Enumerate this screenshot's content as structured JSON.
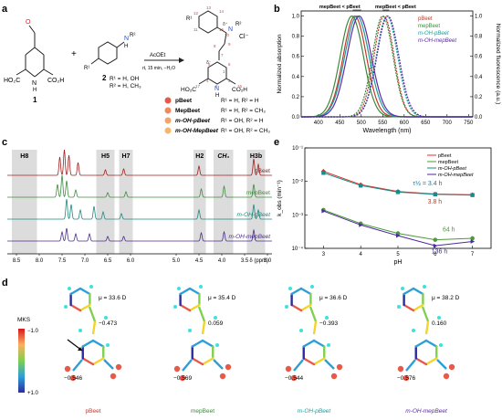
{
  "panel_a": {
    "label": "a",
    "reactant1": {
      "num": "1",
      "ho2c": "HO₂C",
      "co2h": "CO₂H",
      "nh": "N",
      "h": "H"
    },
    "reactant2": {
      "num": "2",
      "r1r2": "R¹ = H, OH",
      "r2": "R² = H, CH₃",
      "sub_nr": "N",
      "sub_r2": "R²",
      "sub_r1": "R¹",
      "sub_h": "H"
    },
    "plus": "+",
    "conditions_top": "AcOEt",
    "conditions_bottom": "rt, 15 min, −H₂O",
    "product": {
      "r1": "R¹",
      "r2": "R²",
      "cl": "Cl⁻",
      "ho2c": "HO₂C",
      "co2h": "CO₂H",
      "nh": "N",
      "h": "H",
      "atom_numbers": [
        "13",
        "14",
        "15",
        "12",
        "11",
        "10",
        "9",
        "8",
        "7",
        "5",
        "6",
        "4",
        "3",
        "2",
        "1",
        "17",
        "16"
      ],
      "delta_plus": "δ⁺",
      "delta_minus": "δ⁻"
    },
    "compounds": [
      {
        "name": "pBeet",
        "desc": "R¹ = H, R² = H",
        "color": "#e8574a"
      },
      {
        "name": "MepBeet",
        "desc": "R¹ = H, R² = CH₃",
        "color": "#f08a5d"
      },
      {
        "name": "m-OH-pBeet",
        "desc": "R¹ = OH, R² = H",
        "color": "#f4a46a"
      },
      {
        "name": "m-OH-MepBeet",
        "desc": "R¹ = OH, R² = CH₃",
        "color": "#f6b66e"
      }
    ]
  },
  "panel_b": {
    "label": "b",
    "annot_left": "mepBeet < pBeet",
    "annot_right": "mepBeet < pBeet",
    "chart_data": {
      "type": "line",
      "xlabel": "Wavelength (nm)",
      "ylabel_left": "Normalized absorption",
      "ylabel_right": "Normalized fluorescence (a.u.)",
      "xlim": [
        360,
        760
      ],
      "ylim": [
        0,
        1.05
      ],
      "xticks": [
        "400",
        "450",
        "500",
        "550",
        "600",
        "650",
        "700",
        "750"
      ],
      "yticks": [
        "0.0",
        "0.2",
        "0.4",
        "0.6",
        "0.8",
        "1.0"
      ],
      "legend": [
        "pBeet",
        "mepBeet",
        "m-OH-pBeet",
        "m-OH-mepBeet"
      ],
      "series": [
        {
          "name": "pBeet",
          "color": "#c0392b",
          "abs_peak": 485,
          "abs_width": 38,
          "fl_peak": 553,
          "fl_width": 33
        },
        {
          "name": "mepBeet",
          "color": "#3a8a3a",
          "abs_peak": 478,
          "abs_width": 38,
          "fl_peak": 550,
          "fl_width": 34
        },
        {
          "name": "m-OH-pBeet",
          "color": "#1a9e9a",
          "abs_peak": 490,
          "abs_width": 40,
          "fl_peak": 560,
          "fl_width": 35
        },
        {
          "name": "m-OH-mepBeet",
          "color": "#5b2aa8",
          "abs_peak": 495,
          "abs_width": 40,
          "fl_peak": 562,
          "fl_width": 36
        }
      ]
    }
  },
  "panel_c": {
    "label": "c",
    "band_labels": [
      "H8",
      "H5",
      "H7",
      "H2",
      "CH₃",
      "H3b"
    ],
    "xticks": [
      "8.5",
      "8.0",
      "7.5",
      "7.0",
      "6.5",
      "6.0",
      "5.0",
      "4.5",
      "4.0",
      "3.5",
      "3.0"
    ],
    "xlabel": "δ (ppm)",
    "spectra": [
      {
        "name": "pBeet",
        "color": "#a31f1f"
      },
      {
        "name": "mepBeet",
        "color": "#3f8c3f"
      },
      {
        "name": "m-OH-pBeet",
        "color": "#1f8a80"
      },
      {
        "name": "m-OH-mepBeet",
        "color": "#4b2d8f"
      }
    ]
  },
  "panel_d": {
    "label": "d",
    "colorbar": {
      "title": "MKS",
      "top": "−1.0",
      "bottom": "+1.0"
    },
    "molecules": [
      {
        "name": "pBeet",
        "color": "#c0392b",
        "dipole": "μ = 33.6 D",
        "q1": "−0.473",
        "q2": "−0.546"
      },
      {
        "name": "mepBeet",
        "color": "#3a8a3a",
        "dipole": "μ = 35.4 D",
        "q1": "0.059",
        "q2": "−0.569"
      },
      {
        "name": "m-OH-pBeet",
        "color": "#1a9e9a",
        "dipole": "μ = 36.6 D",
        "q1": "−0.393",
        "q2": "−0.544"
      },
      {
        "name": "m-OH-mepBeet",
        "color": "#5b2aa8",
        "dipole": "μ = 38.2 D",
        "q1": "0.160",
        "q2": "−0.576"
      }
    ]
  },
  "panel_e": {
    "label": "e",
    "chart_data": {
      "type": "scatter",
      "xlabel": "pH",
      "ylabel": "k_obs (min⁻¹)",
      "xlim": [
        2.5,
        7.5
      ],
      "ylim_log": [
        -4,
        -1
      ],
      "xticks": [
        "3",
        "4",
        "5",
        "6",
        "7"
      ],
      "yticks": [
        "10⁻⁴",
        "10⁻³",
        "10⁻²",
        "10⁻¹"
      ],
      "series": [
        {
          "name": "pBeet",
          "color": "#d9342b",
          "x": [
            3,
            4,
            5,
            6,
            7
          ],
          "y": [
            0.02,
            0.008,
            0.005,
            0.0042,
            0.004
          ]
        },
        {
          "name": "mepBeet",
          "color": "#4c9a3a",
          "x": [
            3,
            4,
            5,
            6,
            7
          ],
          "y": [
            0.0014,
            0.00055,
            0.00028,
            0.00018,
            0.0002
          ]
        },
        {
          "name": "m-OH-pBeet",
          "color": "#1a8a8a",
          "x": [
            3,
            4,
            5,
            6,
            7
          ],
          "y": [
            0.018,
            0.0075,
            0.0048,
            0.0041,
            0.0039
          ]
        },
        {
          "name": "m-OH-mepBeet",
          "color": "#4b2aa0",
          "x": [
            3,
            4,
            5,
            6,
            7
          ],
          "y": [
            0.0013,
            0.0005,
            0.00024,
            0.00012,
            0.00016
          ]
        }
      ],
      "annotations": [
        {
          "text": "τ½ = 3.4 h",
          "color": "#1a7a9a"
        },
        {
          "text": "3.8 h",
          "color": "#c0392b"
        },
        {
          "text": "64 h",
          "color": "#4c9a3a"
        },
        {
          "text": "136 h",
          "color": "#4b2aa0"
        }
      ]
    }
  }
}
